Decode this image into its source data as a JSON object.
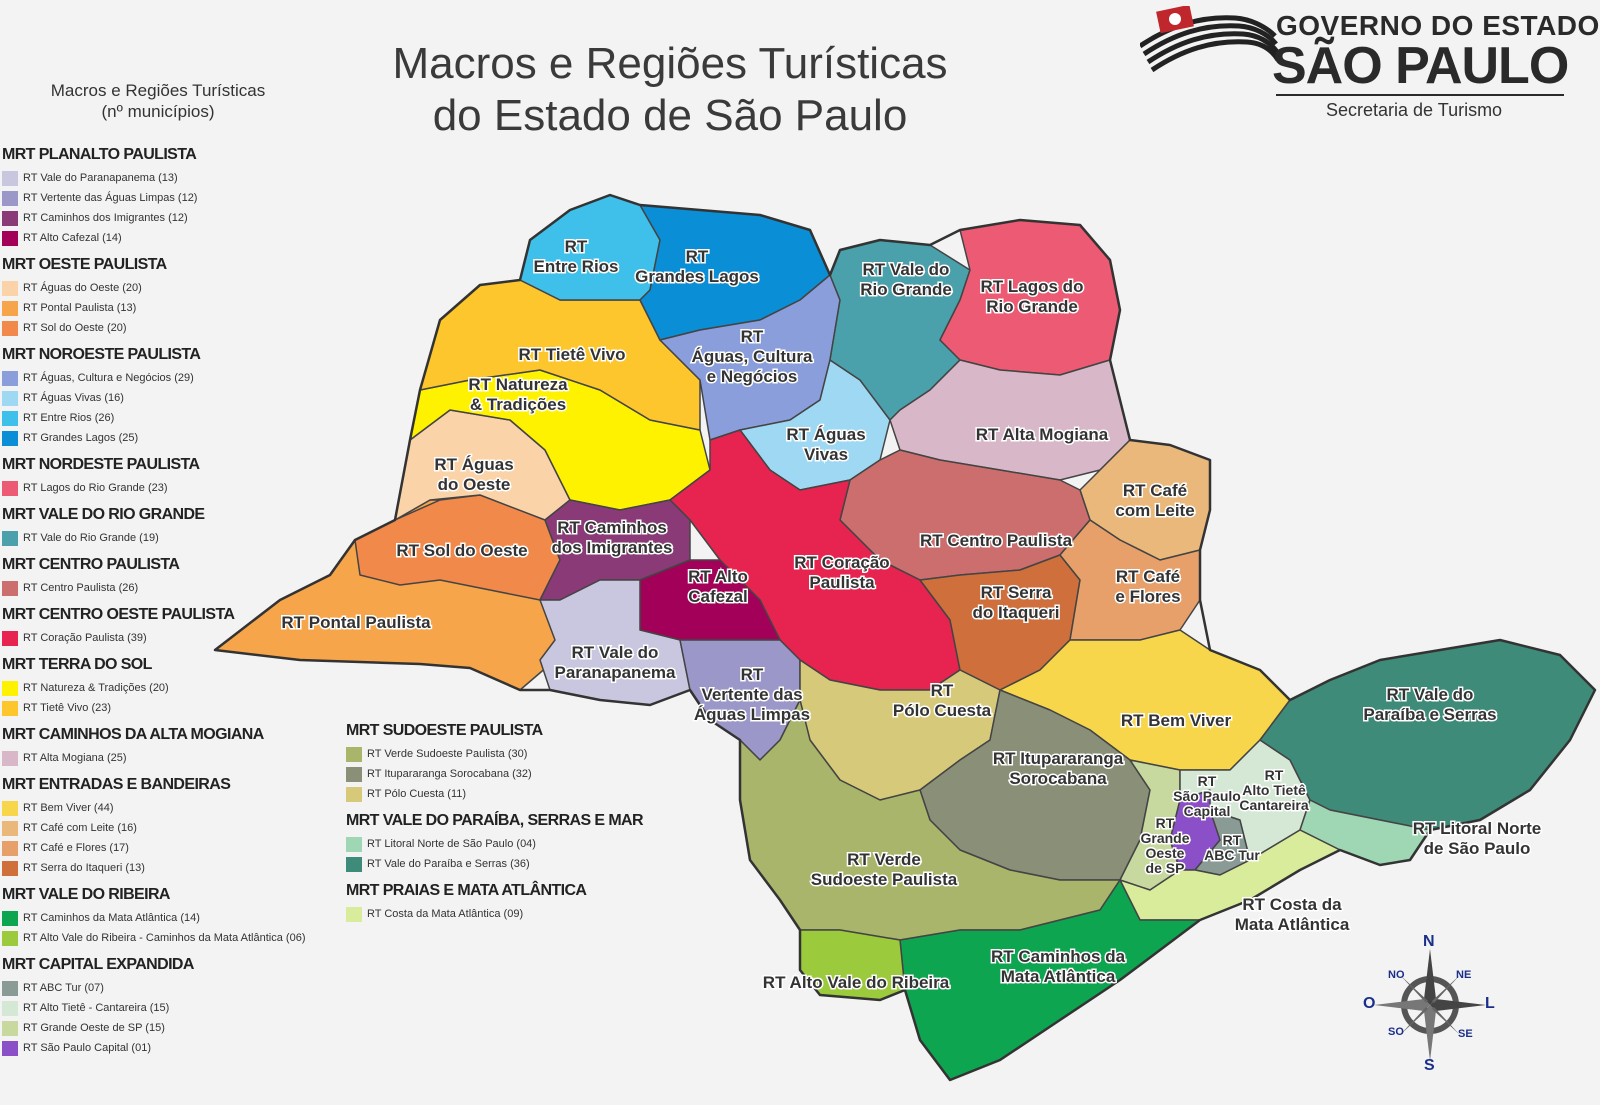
{
  "title": {
    "line1": "Macros e Regiões Turísticas",
    "line2": "do Estado de São Paulo"
  },
  "legend_header": {
    "line1": "Macros e Regiões Turísticas",
    "line2": "(nº municípios)"
  },
  "logo": {
    "line1": "GOVERNO DO ESTADO",
    "line2": "SÃO PAULO",
    "line3": "Secretaria de Turismo"
  },
  "compass": {
    "n": "N",
    "ne": "NE",
    "l": "L",
    "se": "SE",
    "s": "S",
    "so": "SO",
    "o": "O",
    "no": "NO"
  },
  "legend_left": [
    {
      "macro": "MRT PLANALTO PAULISTA",
      "items": [
        {
          "label": "RT Vale do Paranapanema (13)",
          "color": "#c9c6e0"
        },
        {
          "label": "RT Vertente das Águas Limpas (12)",
          "color": "#9b97c9"
        },
        {
          "label": "RT Caminhos dos Imigrantes (12)",
          "color": "#8b3a78"
        },
        {
          "label": "RT Alto Cafezal (14)",
          "color": "#a3005a"
        }
      ]
    },
    {
      "macro": "MRT OESTE PAULISTA",
      "items": [
        {
          "label": "RT Águas do Oeste (20)",
          "color": "#fbd3a8"
        },
        {
          "label": "RT Pontal Paulista (13)",
          "color": "#f7a54a"
        },
        {
          "label": "RT Sol do Oeste (20)",
          "color": "#f0894a"
        }
      ]
    },
    {
      "macro": "MRT NOROESTE PAULISTA",
      "items": [
        {
          "label": "RT Águas, Cultura e Negócios (29)",
          "color": "#8a9edc"
        },
        {
          "label": "RT Águas Vivas (16)",
          "color": "#9fd8f3"
        },
        {
          "label": "RT Entre Rios (26)",
          "color": "#3ec0ea"
        },
        {
          "label": "RT Grandes Lagos (25)",
          "color": "#0a8ed6"
        }
      ]
    },
    {
      "macro": "MRT NORDESTE PAULISTA",
      "items": [
        {
          "label": "RT Lagos do Rio Grande (23)",
          "color": "#ec5a73"
        }
      ]
    },
    {
      "macro": "MRT VALE DO RIO GRANDE",
      "items": [
        {
          "label": "RT Vale do Rio Grande (19)",
          "color": "#4aa0ab"
        }
      ]
    },
    {
      "macro": "MRT CENTRO PAULISTA",
      "items": [
        {
          "label": "RT Centro Paulista (26)",
          "color": "#cc6e6e"
        }
      ]
    },
    {
      "macro": "MRT CENTRO OESTE PAULISTA",
      "items": [
        {
          "label": "RT Coração Paulista (39)",
          "color": "#e6244f"
        }
      ]
    },
    {
      "macro": "MRT TERRA DO SOL",
      "items": [
        {
          "label": "RT Natureza & Tradições (20)",
          "color": "#fff200"
        },
        {
          "label": "RT Tietê Vivo (23)",
          "color": "#fcc62c"
        }
      ]
    },
    {
      "macro": "MRT CAMINHOS DA ALTA MOGIANA",
      "items": [
        {
          "label": "RT Alta Mogiana (25)",
          "color": "#d8b8c8"
        }
      ]
    },
    {
      "macro": "MRT ENTRADAS E BANDEIRAS",
      "items": [
        {
          "label": "RT Bem Viver (44)",
          "color": "#f7d64b"
        },
        {
          "label": "RT Café com Leite (16)",
          "color": "#e9b87a"
        },
        {
          "label": "RT Café e Flores (17)",
          "color": "#e8a06a"
        },
        {
          "label": "RT Serra do Itaqueri (13)",
          "color": "#cf6f3c"
        }
      ]
    },
    {
      "macro": "MRT VALE DO RIBEIRA",
      "items": [
        {
          "label": "RT Caminhos da Mata Atlântica (14)",
          "color": "#0ea551"
        },
        {
          "label": "RT Alto Vale do Ribeira - Caminhos da Mata Atlântica (06)",
          "color": "#9bca3c"
        }
      ]
    },
    {
      "macro": "MRT CAPITAL EXPANDIDA",
      "items": [
        {
          "label": "RT ABC Tur (07)",
          "color": "#8a9a94"
        },
        {
          "label": "RT Alto Tietê - Cantareira (15)",
          "color": "#d5e8d6"
        },
        {
          "label": "RT Grande Oeste de SP (15)",
          "color": "#c8d9a0"
        },
        {
          "label": "RT São Paulo Capital (01)",
          "color": "#8b4fc8"
        }
      ]
    }
  ],
  "legend_right": [
    {
      "macro": "MRT SUDOESTE  PAULISTA",
      "items": [
        {
          "label": "RT Verde Sudoeste Paulista (30)",
          "color": "#a9b56a"
        },
        {
          "label": "RT Itupararanga Sorocabana (32)",
          "color": "#8a9078"
        },
        {
          "label": "RT Pólo Cuesta (11)",
          "color": "#d6c97a"
        }
      ]
    },
    {
      "macro": "MRT VALE DO PARAÍBA, SERRAS E MAR",
      "items": [
        {
          "label": "RT Litoral Norte de São Paulo (04)",
          "color": "#9fd6b3"
        },
        {
          "label": "RT Vale do Paraíba e Serras (36)",
          "color": "#3d8b78"
        }
      ]
    },
    {
      "macro": "MRT PRAIAS E MATA ATLÂNTICA",
      "items": [
        {
          "label": "RT Costa da Mata Atlântica (09)",
          "color": "#d9ec9c"
        }
      ]
    }
  ],
  "map_labels": {
    "entre_rios": [
      "RT",
      "Entre Rios"
    ],
    "grandes_lagos": [
      "RT",
      "Grandes Lagos"
    ],
    "vale_rio_grande": [
      "RT Vale do",
      "Rio Grande"
    ],
    "lagos_rio_grande": [
      "RT Lagos do",
      "Rio Grande"
    ],
    "tiete_vivo": [
      "RT Tietê Vivo"
    ],
    "aguas_cultura": [
      "RT",
      "Águas, Cultura",
      "e Negócios"
    ],
    "natureza": [
      "RT Natureza",
      "& Tradições"
    ],
    "aguas_vivas": [
      "RT Águas",
      "Vivas"
    ],
    "alta_mogiana": [
      "RT Alta Mogiana"
    ],
    "aguas_oeste": [
      "RT Águas",
      "do Oeste"
    ],
    "cafe_leite": [
      "RT Café",
      "com Leite"
    ],
    "caminhos_imigrantes": [
      "RT Caminhos",
      "dos Imigrantes"
    ],
    "sol_oeste": [
      "RT Sol do Oeste"
    ],
    "alto_cafezal": [
      "RT Alto",
      "Cafezal"
    ],
    "coracao": [
      "RT Coração",
      "Paulista"
    ],
    "centro_paulista": [
      "RT Centro Paulista"
    ],
    "cafe_flores": [
      "RT Café",
      "e Flores"
    ],
    "serra_itaqueri": [
      "RT Serra",
      "do Itaqueri"
    ],
    "pontal": [
      "RT Pontal Paulista"
    ],
    "vale_paranapanema": [
      "RT Vale do",
      "Paranapanema"
    ],
    "vertente": [
      "RT",
      "Vertente das",
      "Águas Limpas"
    ],
    "polo_cuesta": [
      "RT",
      "Pólo Cuesta"
    ],
    "bem_viver": [
      "RT Bem Viver"
    ],
    "vale_paraiba": [
      "RT Vale do",
      "Paraíba e Serras"
    ],
    "itupararanga": [
      "RT Itupararanga",
      "Sorocabana"
    ],
    "sp_capital": [
      "RT",
      "São Paulo",
      "Capital"
    ],
    "alto_tiete": [
      "RT",
      "Alto Tietê",
      "Cantareira"
    ],
    "grande_oeste": [
      "RT",
      "Grande",
      "Oeste",
      "de SP"
    ],
    "abc": [
      "RT",
      "ABC Tur"
    ],
    "litoral_norte": [
      "RT Litoral Norte",
      "de São Paulo"
    ],
    "verde_sudoeste": [
      "RT Verde",
      "Sudoeste Paulista"
    ],
    "costa_mata": [
      "RT Costa da",
      "Mata Atlântica"
    ],
    "caminhos_mata": [
      "RT Caminhos da",
      "Mata Atlântica"
    ],
    "alto_vale_ribeira": [
      "RT Alto Vale do Ribeira"
    ]
  }
}
